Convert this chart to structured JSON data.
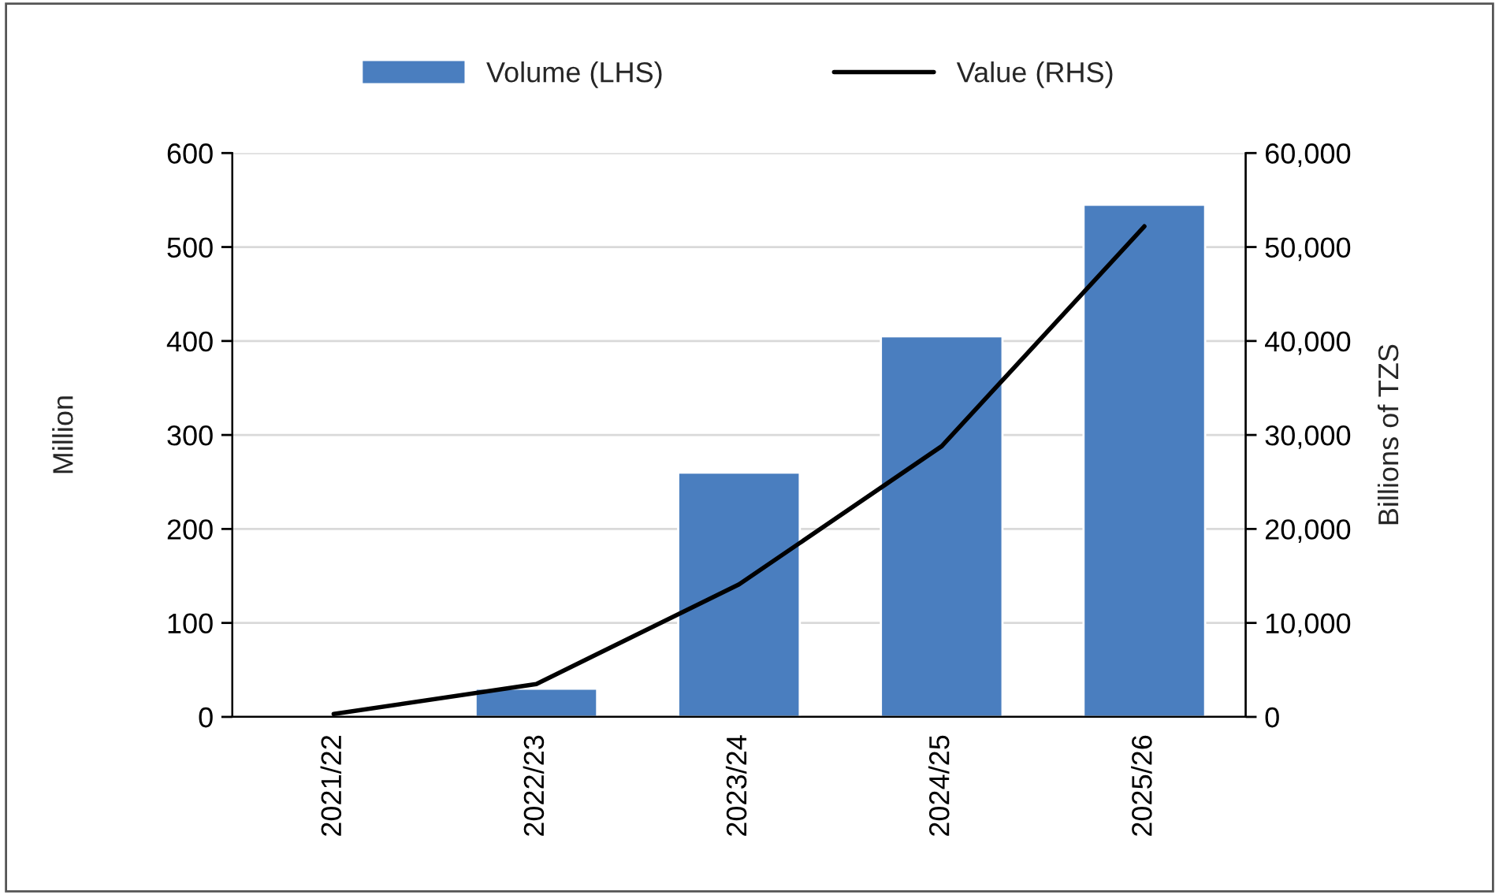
{
  "chart_data": {
    "type": "bar",
    "categories": [
      "2021/22",
      "2022/23",
      "2023/24",
      "2024/25",
      "2025/26"
    ],
    "series": [
      {
        "name": "Volume (LHS)",
        "color": "#4a7ebf",
        "values": [
          null,
          30,
          260,
          405,
          545
        ]
      },
      {
        "name": "Value (RHS)",
        "type": "line",
        "axis": "y2",
        "color": "#000000",
        "values": [
          300,
          3500,
          14100,
          28800,
          52200
        ]
      }
    ],
    "ylabel": "Million",
    "y2label": "Billions of TZS",
    "ylim": [
      0,
      600
    ],
    "yticks": [
      0,
      100,
      200,
      300,
      400,
      500,
      600
    ],
    "y2lim": [
      0,
      60000
    ],
    "y2ticks": [
      0,
      {
        "value": 10000,
        "label": "10,000"
      },
      {
        "value": 20000,
        "label": "20,000"
      },
      {
        "value": 30000,
        "label": "30,000"
      },
      {
        "value": 40000,
        "label": "40,000"
      },
      {
        "value": 50000,
        "label": "50,000"
      },
      {
        "value": 60000,
        "label": "60,000"
      }
    ],
    "grid": "y",
    "legend": "top",
    "marker": "none",
    "line_style": "solid"
  }
}
